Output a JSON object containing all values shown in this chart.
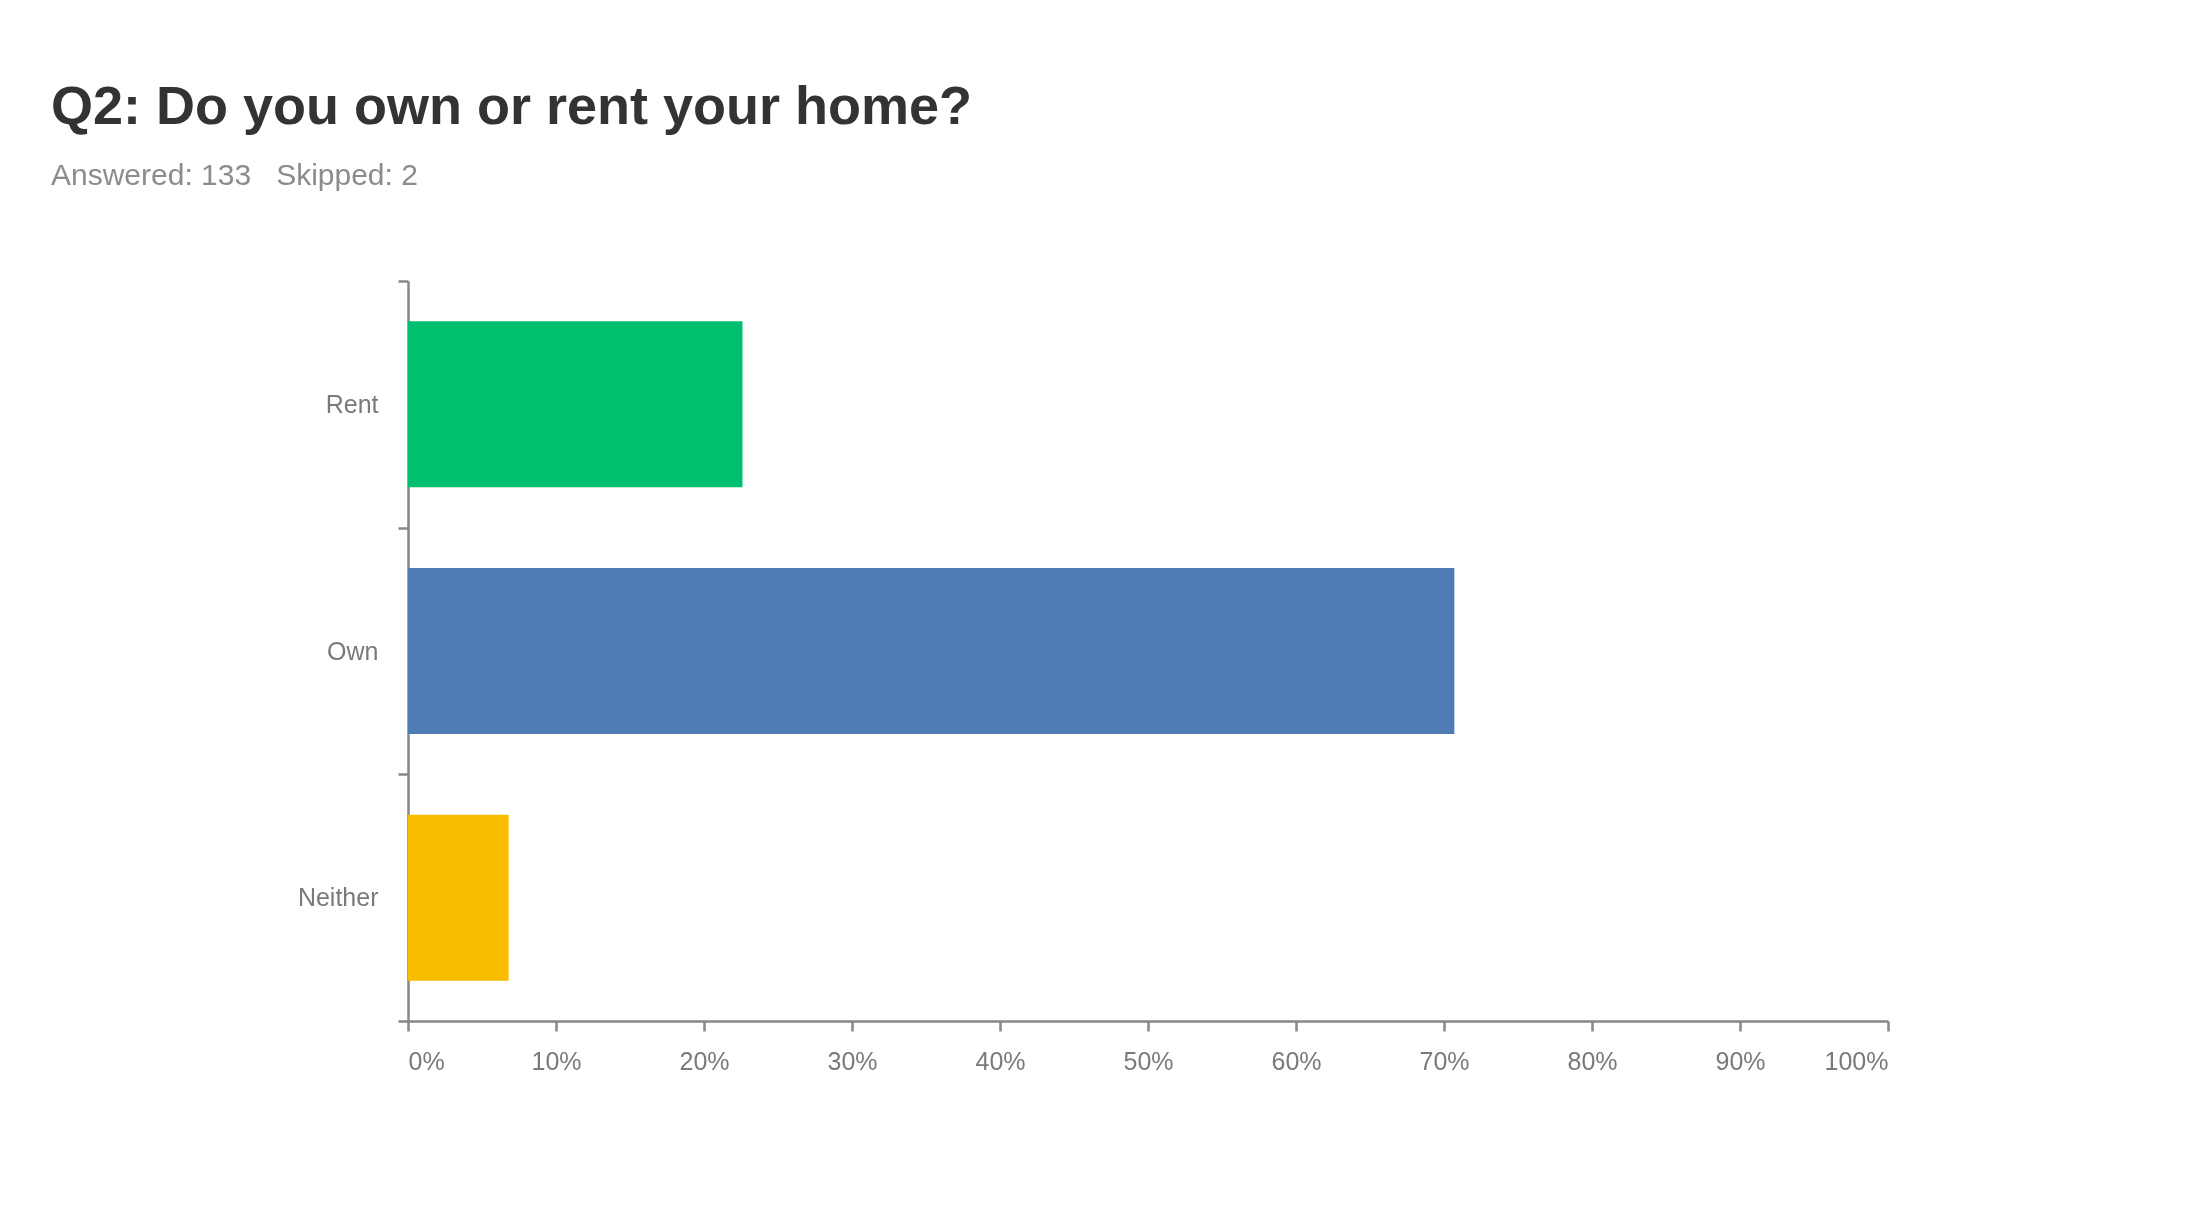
{
  "chart_data": {
    "type": "bar",
    "orientation": "horizontal",
    "title": "Q2: Do you own or rent your home?",
    "subtitle": "Answered: 133   Skipped: 2",
    "categories": [
      "Rent",
      "Own",
      "Neither"
    ],
    "values": [
      22.6,
      70.7,
      6.8
    ],
    "colors": [
      "#00bf6f",
      "#507cb6",
      "#f9be00"
    ],
    "xlim": [
      0,
      100
    ],
    "xticks": [
      {
        "value": 0,
        "label": "0%"
      },
      {
        "value": 10,
        "label": "10%"
      },
      {
        "value": 20,
        "label": "20%"
      },
      {
        "value": 30,
        "label": "30%"
      },
      {
        "value": 40,
        "label": "40%"
      },
      {
        "value": 50,
        "label": "50%"
      },
      {
        "value": 60,
        "label": "60%"
      },
      {
        "value": 70,
        "label": "70%"
      },
      {
        "value": 80,
        "label": "80%"
      },
      {
        "value": 90,
        "label": "90%"
      },
      {
        "value": 100,
        "label": "100%"
      }
    ]
  }
}
